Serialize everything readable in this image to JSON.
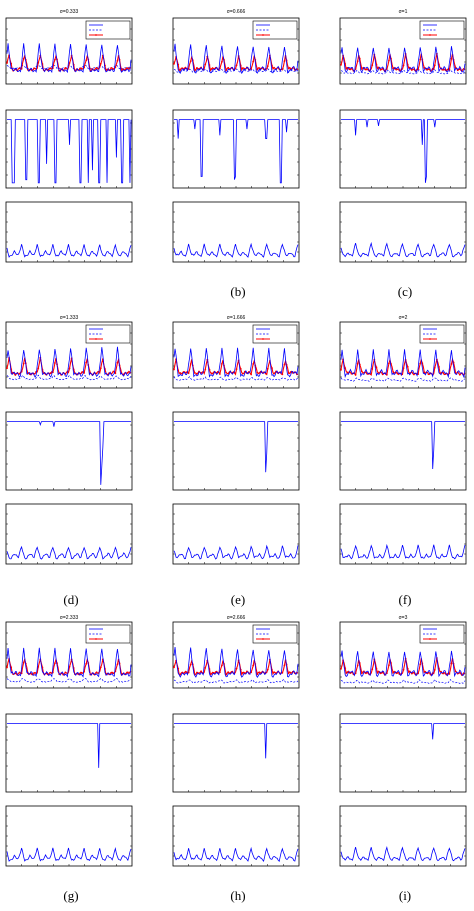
{
  "panels": [
    {
      "title": "σ=0.333",
      "caption": ""
    },
    {
      "title": "σ=0.666",
      "caption": "(b)"
    },
    {
      "title": "σ=1",
      "caption": "(c)"
    },
    {
      "title": "σ=1.333",
      "caption": "(d)"
    },
    {
      "title": "σ=1.666",
      "caption": "(e)"
    },
    {
      "title": "σ=2",
      "caption": "(f)"
    },
    {
      "title": "σ=2.333",
      "caption": "(g)"
    },
    {
      "title": "σ=2.666",
      "caption": "(h)"
    },
    {
      "title": "σ=3",
      "caption": "(i)"
    }
  ],
  "colors": {
    "series_solid": "#0000ff",
    "series_dashed": "#0000ff",
    "series_marked": "#ff0000",
    "axes": "#000000"
  },
  "chart_data": {
    "type": "line",
    "layout": "3x3 grid of panels, each with 3 stacked subplots",
    "n_points": 120,
    "top_subplot": {
      "description": "three periodic series with a legend in the top-right corner",
      "series": [
        {
          "style": "solid blue"
        },
        {
          "style": "dashed blue"
        },
        {
          "style": "red with markers"
        }
      ],
      "dashed_level_by_panel": [
        0.55,
        0.42,
        0.35,
        0.28,
        0.25,
        0.22,
        0.18,
        0.15,
        0.13
      ]
    },
    "middle_subplot": {
      "description": "blue signal near the top with downward dips",
      "dips_by_panel": [
        [
          [
            5,
            0.0
          ],
          [
            6,
            0.0
          ],
          [
            7,
            0.0
          ],
          [
            18,
            0.05
          ],
          [
            19,
            0.05
          ],
          [
            30,
            0.0
          ],
          [
            31,
            0.0
          ],
          [
            38,
            0.3
          ],
          [
            46,
            0.0
          ],
          [
            47,
            0.0
          ],
          [
            60,
            0.6
          ],
          [
            70,
            0.0
          ],
          [
            71,
            0.0
          ],
          [
            78,
            0.0
          ],
          [
            82,
            0.2
          ],
          [
            88,
            0.0
          ],
          [
            89,
            0.0
          ],
          [
            96,
            0.0
          ],
          [
            105,
            0.4
          ],
          [
            110,
            0.0
          ],
          [
            111,
            0.0
          ],
          [
            118,
            0.0
          ]
        ],
        [
          [
            4,
            0.7
          ],
          [
            20,
            0.85
          ],
          [
            26,
            0.1
          ],
          [
            27,
            0.1
          ],
          [
            44,
            0.75
          ],
          [
            58,
            0.05
          ],
          [
            59,
            0.1
          ],
          [
            70,
            0.85
          ],
          [
            88,
            0.7
          ],
          [
            89,
            0.7
          ],
          [
            102,
            0.0
          ],
          [
            103,
            0.0
          ],
          [
            108,
            0.8
          ]
        ],
        [
          [
            14,
            0.75
          ],
          [
            25,
            0.88
          ],
          [
            36,
            0.9
          ],
          [
            78,
            0.6
          ],
          [
            81,
            0.0
          ],
          [
            82,
            0.1
          ],
          [
            90,
            0.88
          ]
        ],
        [
          [
            32,
            0.95
          ],
          [
            45,
            0.92
          ],
          [
            90,
            0.0
          ],
          [
            91,
            0.3
          ],
          [
            92,
            0.6
          ]
        ],
        [
          [
            88,
            0.2
          ],
          [
            89,
            0.5
          ]
        ],
        [
          [
            88,
            0.25
          ],
          [
            89,
            0.55
          ]
        ],
        [
          [
            88,
            0.3
          ]
        ],
        [
          [
            88,
            0.45
          ]
        ],
        [
          [
            88,
            0.75
          ]
        ]
      ]
    },
    "bottom_subplot": {
      "description": "single periodic blue signal in the lower part of the axes",
      "series": [
        {
          "style": "solid blue"
        }
      ]
    }
  }
}
